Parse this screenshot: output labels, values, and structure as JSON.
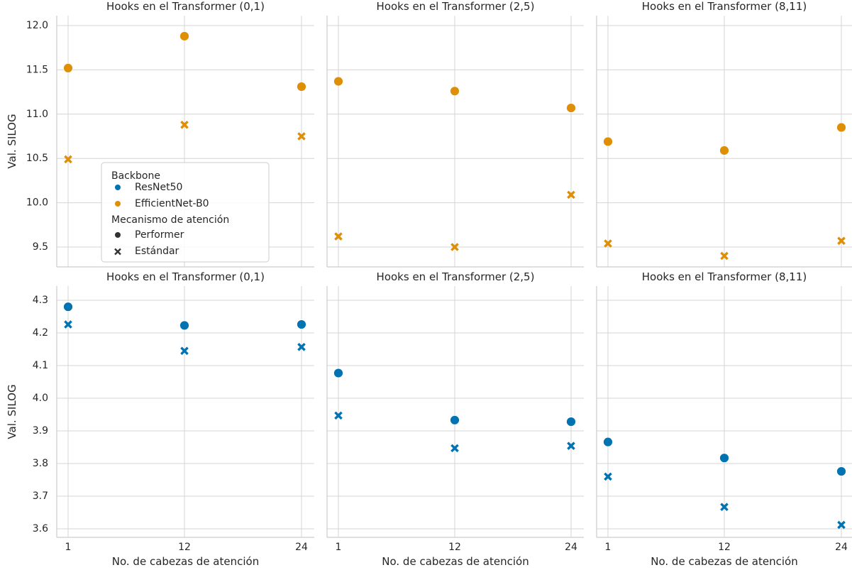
{
  "colors": {
    "ResNet50": "#0173b2",
    "EfficientNet-B0": "#de8f05"
  },
  "legend": {
    "backbone_title": "Backbone",
    "backbone_items": [
      "ResNet50",
      "EfficientNet-B0"
    ],
    "attention_title": "Mecanismo de atención",
    "attention_items": [
      "Performer",
      "Estándar"
    ],
    "placement": "center-left, top-left panel"
  },
  "chart_data": [
    {
      "type": "scatter",
      "title": "Hooks en el Transformer (0,1)",
      "xlabel": "",
      "ylabel": "Val. SILOG",
      "x": [
        1,
        12,
        24
      ],
      "ylim": [
        9.27,
        12.0
      ],
      "yticks": [
        "9.5",
        "10.0",
        "10.5",
        "11.0",
        "11.5",
        "12.0"
      ],
      "grid": true,
      "series": [
        {
          "name": "EfficientNet-B0 / Performer",
          "backbone": "EfficientNet-B0",
          "marker": "Performer",
          "values": [
            11.52,
            11.88,
            11.31
          ]
        },
        {
          "name": "EfficientNet-B0 / Estándar",
          "backbone": "EfficientNet-B0",
          "marker": "Estándar",
          "values": [
            10.49,
            10.88,
            10.75
          ]
        }
      ]
    },
    {
      "type": "scatter",
      "title": "Hooks en el Transformer (2,5)",
      "xlabel": "",
      "ylabel": "",
      "x": [
        1,
        12,
        24
      ],
      "ylim": [
        9.27,
        12.0
      ],
      "yticks": [],
      "grid": true,
      "series": [
        {
          "name": "EfficientNet-B0 / Performer",
          "backbone": "EfficientNet-B0",
          "marker": "Performer",
          "values": [
            11.37,
            11.26,
            11.07
          ]
        },
        {
          "name": "EfficientNet-B0 / Estándar",
          "backbone": "EfficientNet-B0",
          "marker": "Estándar",
          "values": [
            9.62,
            9.5,
            10.09
          ]
        }
      ]
    },
    {
      "type": "scatter",
      "title": "Hooks en el Transformer (8,11)",
      "xlabel": "",
      "ylabel": "",
      "x": [
        1,
        12,
        24
      ],
      "ylim": [
        9.27,
        12.0
      ],
      "yticks": [],
      "grid": true,
      "series": [
        {
          "name": "EfficientNet-B0 / Performer",
          "backbone": "EfficientNet-B0",
          "marker": "Performer",
          "values": [
            10.69,
            10.59,
            10.85
          ]
        },
        {
          "name": "EfficientNet-B0 / Estándar",
          "backbone": "EfficientNet-B0",
          "marker": "Estándar",
          "values": [
            9.54,
            9.4,
            9.57
          ]
        }
      ]
    },
    {
      "type": "scatter",
      "title": "Hooks en el Transformer (0,1)",
      "xlabel": "No. de cabezas de atención",
      "ylabel": "Val. SILOG",
      "x": [
        1,
        12,
        24
      ],
      "ylim": [
        3.58,
        4.31
      ],
      "yticks": [
        "3.6",
        "3.7",
        "3.8",
        "3.9",
        "4.0",
        "4.1",
        "4.2",
        "4.3"
      ],
      "xticks": [
        "1",
        "12",
        "24"
      ],
      "grid": true,
      "series": [
        {
          "name": "ResNet50 / Performer",
          "backbone": "ResNet50",
          "marker": "Performer",
          "values": [
            4.28,
            4.223,
            4.226
          ]
        },
        {
          "name": "ResNet50 / Estándar",
          "backbone": "ResNet50",
          "marker": "Estándar",
          "values": [
            4.226,
            4.145,
            4.157
          ]
        }
      ]
    },
    {
      "type": "scatter",
      "title": "Hooks en el Transformer (2,5)",
      "xlabel": "No. de cabezas de atención",
      "ylabel": "",
      "x": [
        1,
        12,
        24
      ],
      "ylim": [
        3.58,
        4.31
      ],
      "yticks": [],
      "xticks": [
        "1",
        "12",
        "24"
      ],
      "grid": true,
      "series": [
        {
          "name": "ResNet50 / Performer",
          "backbone": "ResNet50",
          "marker": "Performer",
          "values": [
            4.077,
            3.933,
            3.928
          ]
        },
        {
          "name": "ResNet50 / Estándar",
          "backbone": "ResNet50",
          "marker": "Estándar",
          "values": [
            3.947,
            3.847,
            3.854
          ]
        }
      ]
    },
    {
      "type": "scatter",
      "title": "Hooks en el Transformer (8,11)",
      "xlabel": "No. de cabezas de atención",
      "ylabel": "",
      "x": [
        1,
        12,
        24
      ],
      "ylim": [
        3.58,
        4.31
      ],
      "yticks": [],
      "xticks": [
        "1",
        "12",
        "24"
      ],
      "grid": true,
      "series": [
        {
          "name": "ResNet50 / Performer",
          "backbone": "ResNet50",
          "marker": "Performer",
          "values": [
            3.866,
            3.817,
            3.776
          ]
        },
        {
          "name": "ResNet50 / Estándar",
          "backbone": "ResNet50",
          "marker": "Estándar",
          "values": [
            3.76,
            3.667,
            3.612
          ]
        }
      ]
    }
  ]
}
